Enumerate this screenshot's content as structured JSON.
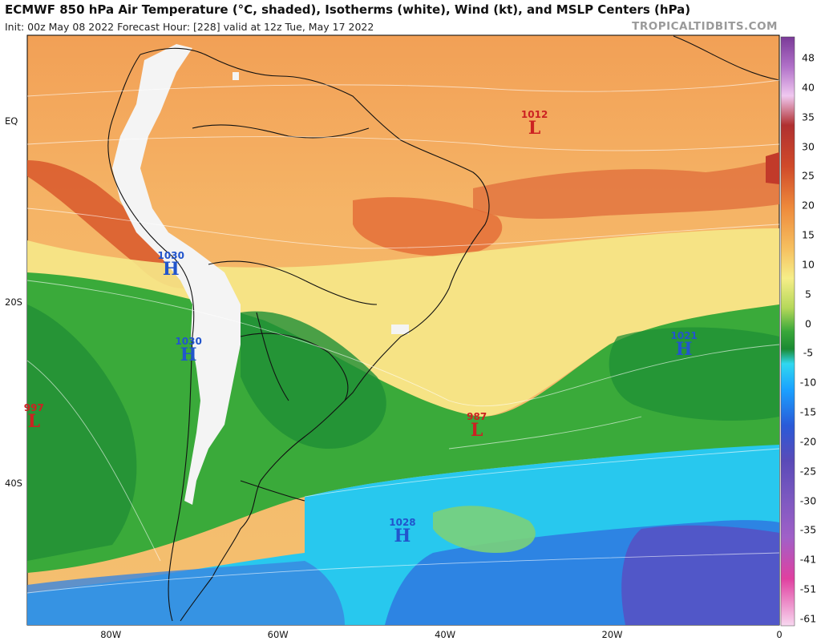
{
  "header": {
    "title": "ECMWF 850 hPa Air Temperature (°C, shaded), Isotherms (white), Wind (kt), and MSLP Centers (hPa)",
    "subtitle": "Init: 00z May 08 2022   Forecast Hour: [228]   valid at 12z Tue, May 17 2022",
    "credit": "TROPICALTIDBITS.COM"
  },
  "axes": {
    "lat_labels": [
      {
        "label": "EQ",
        "lat": 0
      },
      {
        "label": "20S",
        "lat": -20
      },
      {
        "label": "40S",
        "lat": -40
      }
    ],
    "lon_labels": [
      {
        "label": "80W",
        "lon": -80
      },
      {
        "label": "60W",
        "lon": -60
      },
      {
        "label": "40W",
        "lon": -40
      },
      {
        "label": "20W",
        "lon": -20
      },
      {
        "label": "0",
        "lon": 0
      }
    ],
    "extent": {
      "lon_min": -90,
      "lon_max": 0,
      "lat_min": -55.5,
      "lat_max": 9.5
    }
  },
  "colorbar": {
    "labels": [
      "48",
      "40",
      "35",
      "30",
      "25",
      "20",
      "15",
      "10",
      "5",
      "0",
      "-5",
      "-10",
      "-15",
      "-20",
      "-25",
      "-30",
      "-35",
      "-41",
      "-51",
      "-61"
    ]
  },
  "pressure_centers": [
    {
      "type": "L",
      "value": "1012",
      "lat": -0.2,
      "lon": -29.3
    },
    {
      "type": "H",
      "value": "1030",
      "lat": -15.8,
      "lon": -72.8
    },
    {
      "type": "H",
      "value": "1030",
      "lat": -25.2,
      "lon": -70.7
    },
    {
      "type": "H",
      "value": "1021",
      "lat": -24.6,
      "lon": -11.4
    },
    {
      "type": "L",
      "value": "997",
      "lat": -32.5,
      "lon": -89.2
    },
    {
      "type": "L",
      "value": "987",
      "lat": -33.5,
      "lon": -36.2
    },
    {
      "type": "H",
      "value": "1028",
      "lat": -45.2,
      "lon": -45.1
    }
  ]
}
